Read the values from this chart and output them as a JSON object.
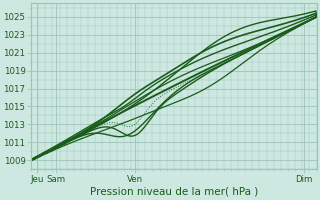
{
  "bg_color": "#cce8e0",
  "grid_color": "#9dc4b8",
  "line_color": "#1a5c1a",
  "ylabel_values": [
    1009,
    1011,
    1013,
    1015,
    1017,
    1019,
    1021,
    1023,
    1025
  ],
  "ylim": [
    1008.0,
    1026.5
  ],
  "xlim": [
    0.0,
    4.0
  ],
  "xtick_positions": [
    0.08,
    0.35,
    1.45,
    3.82
  ],
  "xtick_labels": [
    "Jeu",
    "Sam",
    "Ven",
    "Dim"
  ],
  "xlabel": "Pression niveau de la mer( hPa )",
  "xlabel_fontsize": 7.5,
  "ytick_fontsize": 6.2,
  "xtick_fontsize": 6.2
}
